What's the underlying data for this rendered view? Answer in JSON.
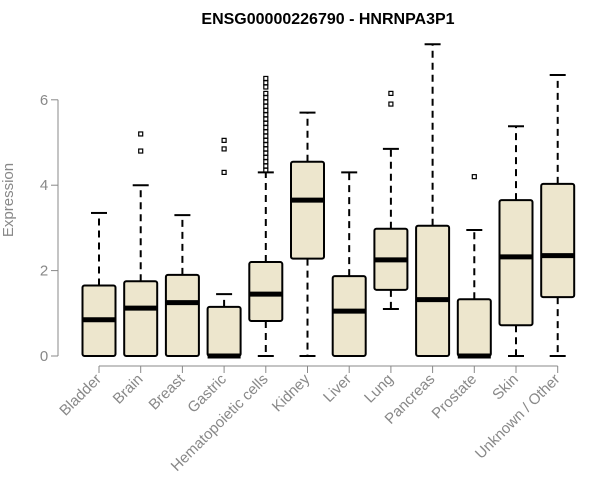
{
  "chart_data": {
    "type": "box",
    "title": "ENSG00000226790 - HNRNPA3P1",
    "xlabel": "",
    "ylabel": "Expression",
    "ylim": [
      0,
      7.3
    ],
    "yticks": [
      0,
      2,
      4,
      6
    ],
    "grid": false,
    "box_fill": "#ede6cd",
    "categories": [
      "Bladder",
      "Brain",
      "Breast",
      "Gastric",
      "Hematopoietic cells",
      "Kidney",
      "Liver",
      "Lung",
      "Pancreas",
      "Prostate",
      "Skin",
      "Unknown / Other"
    ],
    "boxes": [
      {
        "min": 0,
        "q1": 0.0,
        "median": 0.85,
        "q3": 1.65,
        "max": 3.35,
        "outliers": []
      },
      {
        "min": 0,
        "q1": 0.0,
        "median": 1.12,
        "q3": 1.75,
        "max": 4.0,
        "outliers": [
          4.8,
          5.2
        ]
      },
      {
        "min": 0,
        "q1": 0.0,
        "median": 1.25,
        "q3": 1.9,
        "max": 3.3,
        "outliers": []
      },
      {
        "min": 0,
        "q1": 0.0,
        "median": 0.0,
        "q3": 1.15,
        "max": 1.45,
        "outliers": [
          4.3,
          4.85,
          5.05
        ]
      },
      {
        "min": 0,
        "q1": 0.82,
        "median": 1.45,
        "q3": 2.2,
        "max": 4.3,
        "outliers": [
          4.35,
          4.45,
          4.55,
          4.65,
          4.75,
          4.85,
          4.95,
          5.05,
          5.15,
          5.25,
          5.35,
          5.45,
          5.55,
          5.65,
          5.75,
          5.85,
          5.95,
          6.05,
          6.15,
          6.3,
          6.4,
          6.5
        ]
      },
      {
        "min": 0,
        "q1": 2.28,
        "median": 3.65,
        "q3": 4.55,
        "max": 5.7,
        "outliers": []
      },
      {
        "min": 0,
        "q1": 0.0,
        "median": 1.05,
        "q3": 1.87,
        "max": 4.3,
        "outliers": []
      },
      {
        "min": 1.1,
        "q1": 1.55,
        "median": 2.25,
        "q3": 2.98,
        "max": 4.85,
        "outliers": [
          5.9,
          6.15
        ]
      },
      {
        "min": 0,
        "q1": 0.0,
        "median": 1.32,
        "q3": 3.05,
        "max": 7.3,
        "outliers": []
      },
      {
        "min": 0,
        "q1": 0.0,
        "median": 0.0,
        "q3": 1.33,
        "max": 2.95,
        "outliers": [
          4.2
        ]
      },
      {
        "min": 0,
        "q1": 0.72,
        "median": 2.32,
        "q3": 3.65,
        "max": 5.38,
        "outliers": []
      },
      {
        "min": 0,
        "q1": 1.38,
        "median": 2.35,
        "q3": 4.03,
        "max": 6.58,
        "outliers": []
      }
    ]
  }
}
